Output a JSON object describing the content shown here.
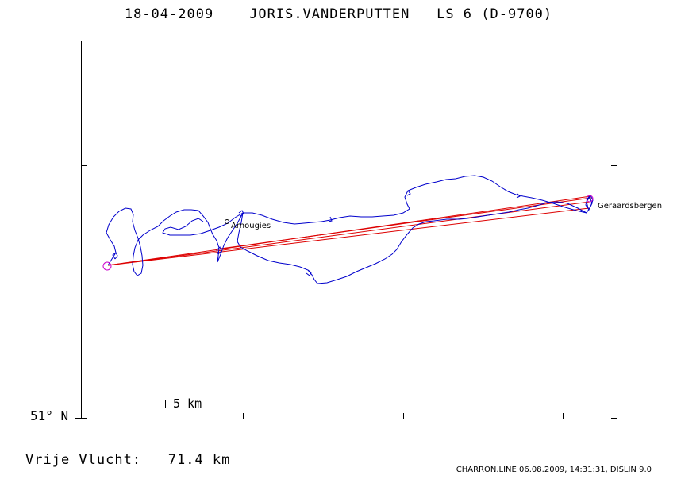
{
  "header": {
    "date": "18-04-2009",
    "pilot": "JORIS.VANDERPUTTEN",
    "glider": "LS 6 (D-9700)"
  },
  "map": {
    "places": [
      {
        "name": "Arnougies"
      },
      {
        "name": "Geraardsbergen"
      }
    ],
    "latitude_label": "51° N",
    "scale": {
      "label": "5 km"
    },
    "colors": {
      "flight_track": "#0000cc",
      "task_lines": "#dd0000",
      "start_marker": "#cc00cc",
      "frame": "#000000"
    }
  },
  "footer": {
    "distance_text": "Vrije Vlucht:   71.4 km",
    "credits": "CHARRON.LINE 06.08.2009, 14:31:31, DISLIN 9.0"
  }
}
